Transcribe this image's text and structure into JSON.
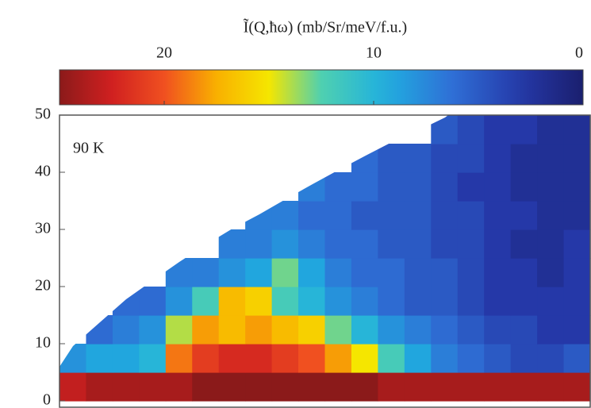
{
  "chart_data": {
    "type": "heatmap",
    "title": "Ĩ(Q,ħω)  (mb/Sr/meV/f.u.)",
    "annotation": "90 K",
    "ylim": [
      0,
      50
    ],
    "yticks": [
      0,
      10,
      20,
      30,
      40,
      50
    ],
    "colorbar": {
      "lim": [
        25,
        0
      ],
      "ticks": [
        20,
        10,
        0
      ]
    },
    "z": [
      [
        23,
        24,
        24,
        24,
        24,
        25,
        25,
        25,
        25,
        25,
        25,
        25,
        24,
        24,
        24,
        24,
        24,
        24,
        24,
        24
      ],
      [
        8,
        9,
        9,
        10,
        19,
        21,
        22,
        22,
        21,
        20,
        18,
        15,
        12,
        9,
        7,
        6,
        5,
        4,
        4,
        5
      ],
      [
        null,
        6,
        7,
        8,
        14,
        18,
        17,
        18,
        17,
        16,
        13,
        10,
        8,
        7,
        6,
        5,
        4,
        4,
        3,
        3
      ],
      [
        null,
        null,
        6,
        6,
        8,
        12,
        17,
        16,
        12,
        10,
        8,
        7,
        6,
        5,
        5,
        4,
        3,
        3,
        3,
        3
      ],
      [
        null,
        null,
        null,
        null,
        7,
        7,
        8,
        9,
        13,
        9,
        7,
        6,
        6,
        5,
        5,
        4,
        3,
        3,
        2,
        3
      ],
      [
        null,
        null,
        null,
        null,
        null,
        null,
        7,
        7,
        8,
        7,
        6,
        6,
        5,
        5,
        4,
        4,
        3,
        2,
        2,
        3
      ],
      [
        null,
        null,
        null,
        null,
        null,
        null,
        null,
        7,
        7,
        6,
        6,
        5,
        5,
        5,
        4,
        4,
        3,
        3,
        2,
        2
      ],
      [
        null,
        null,
        null,
        null,
        null,
        null,
        null,
        null,
        null,
        7,
        6,
        6,
        5,
        5,
        4,
        3,
        3,
        2,
        2,
        2
      ],
      [
        null,
        null,
        null,
        null,
        null,
        null,
        null,
        null,
        null,
        null,
        null,
        6,
        5,
        5,
        4,
        4,
        3,
        2,
        2,
        2
      ],
      [
        null,
        null,
        null,
        null,
        null,
        null,
        null,
        null,
        null,
        null,
        null,
        null,
        null,
        null,
        5,
        4,
        3,
        3,
        2,
        2
      ]
    ]
  }
}
